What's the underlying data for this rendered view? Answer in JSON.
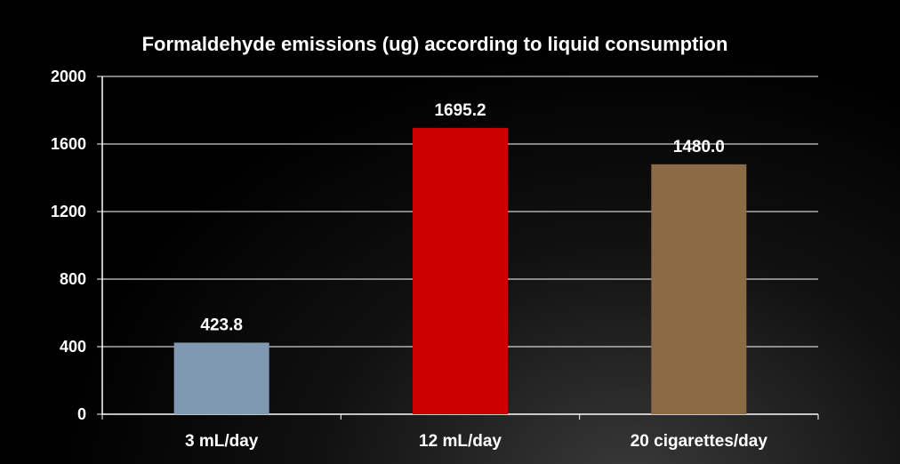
{
  "chart_data": {
    "type": "bar",
    "title": "Formaldehyde emissions (ug) according to liquid consumption",
    "xlabel": "",
    "ylabel": "",
    "categories": [
      "3 mL/day",
      "12 mL/day",
      "20 cigarettes/day"
    ],
    "values": [
      423.8,
      1695.2,
      1480.0
    ],
    "data_labels": [
      "423.8",
      "1695.2",
      "1480.0"
    ],
    "bar_colors": [
      "#7f99b2",
      "#cc0000",
      "#8c6a45"
    ],
    "ylim": [
      0,
      2000
    ],
    "yticks": [
      0,
      400,
      800,
      1200,
      1600,
      2000
    ],
    "ytick_labels": [
      "0",
      "400",
      "800",
      "1200",
      "1600",
      "2000"
    ],
    "grid": true,
    "legend": "none",
    "colors": {
      "background": "#000000",
      "text": "#ffffff",
      "grid": "#ffffff"
    }
  }
}
